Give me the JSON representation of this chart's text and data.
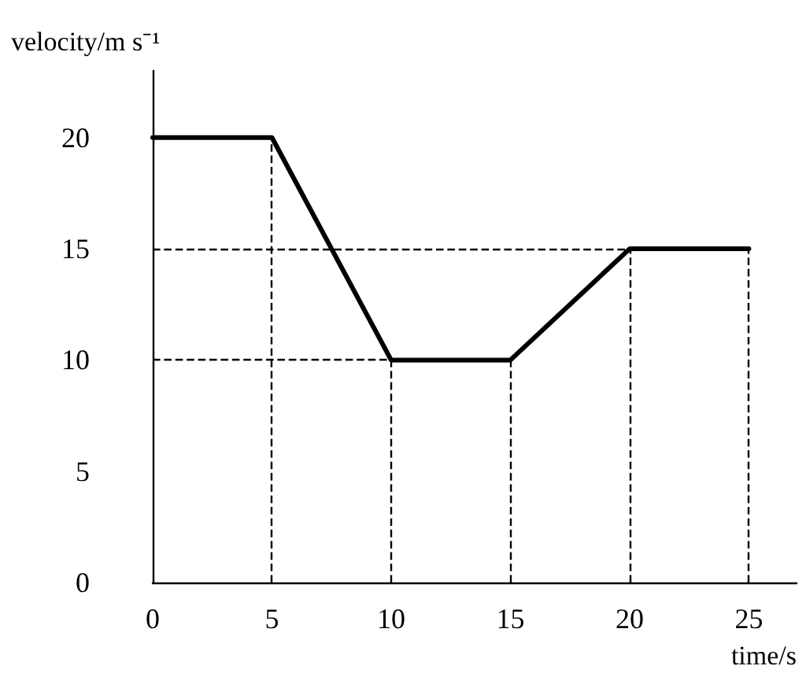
{
  "chart_data": {
    "type": "line",
    "xlabel": "time/s",
    "ylabel": "velocity/m s⁻¹",
    "x": [
      0,
      5,
      10,
      15,
      20,
      25
    ],
    "series": [
      {
        "color": "#000000",
        "values": [
          20,
          20,
          10,
          10,
          15,
          15
        ]
      }
    ],
    "xlim": [
      0,
      27
    ],
    "ylim": [
      0,
      23
    ],
    "xticks": [
      0,
      5,
      10,
      15,
      20,
      25
    ],
    "yticks": [
      0,
      5,
      10,
      15,
      20
    ],
    "grid": false,
    "marker": "none",
    "line_style": "solid",
    "ref_lines": [
      {
        "axis": "x",
        "value": 5,
        "line_style": "dashed"
      },
      {
        "axis": "x",
        "value": 10,
        "line_style": "dashed"
      },
      {
        "axis": "x",
        "value": 15,
        "line_style": "dashed"
      },
      {
        "axis": "x",
        "value": 20,
        "line_style": "dashed"
      },
      {
        "axis": "x",
        "value": 25,
        "line_style": "dashed"
      },
      {
        "axis": "y",
        "value": 15,
        "line_style": "dashed"
      },
      {
        "axis": "y",
        "value": 10,
        "line_style": "dashed"
      }
    ]
  }
}
